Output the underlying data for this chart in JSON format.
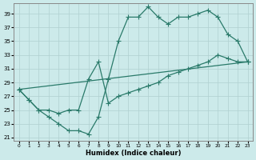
{
  "xlabel": "Humidex (Indice chaleur)",
  "bg_color": "#cceaea",
  "line_color": "#2a7a6a",
  "xlim": [
    -0.5,
    23.5
  ],
  "ylim": [
    20.5,
    40.5
  ],
  "yticks": [
    21,
    23,
    25,
    27,
    29,
    31,
    33,
    35,
    37,
    39
  ],
  "xticks": [
    0,
    1,
    2,
    3,
    4,
    5,
    6,
    7,
    8,
    9,
    10,
    11,
    12,
    13,
    14,
    15,
    16,
    17,
    18,
    19,
    20,
    21,
    22,
    23
  ],
  "line1_x": [
    0,
    1,
    2,
    3,
    4,
    5,
    6,
    7,
    8,
    9,
    10,
    11,
    12,
    13,
    14,
    15,
    16,
    17,
    18,
    19,
    20,
    21,
    22,
    23
  ],
  "line1_y": [
    28,
    26.5,
    25,
    24,
    23,
    22,
    22,
    21.5,
    24,
    29.5,
    35,
    38.5,
    38.5,
    40,
    38.5,
    37.5,
    38.5,
    38.5,
    39,
    39.5,
    38.5,
    36,
    35,
    32
  ],
  "line2_x": [
    0,
    1,
    2,
    3,
    4,
    5,
    6,
    7,
    8,
    9,
    10,
    11,
    12,
    13,
    14,
    15,
    16,
    17,
    18,
    19,
    20,
    21,
    22,
    23
  ],
  "line2_y": [
    28,
    26.5,
    25,
    25,
    24.5,
    25,
    25,
    29.5,
    32,
    26,
    27,
    27.5,
    28,
    28.5,
    29,
    30,
    30.5,
    31,
    31.5,
    32,
    33,
    32.5,
    32,
    32
  ],
  "line3_x": [
    0,
    23
  ],
  "line3_y": [
    28,
    32
  ],
  "grid_color": "#b0d0d0",
  "spine_color": "#888888"
}
